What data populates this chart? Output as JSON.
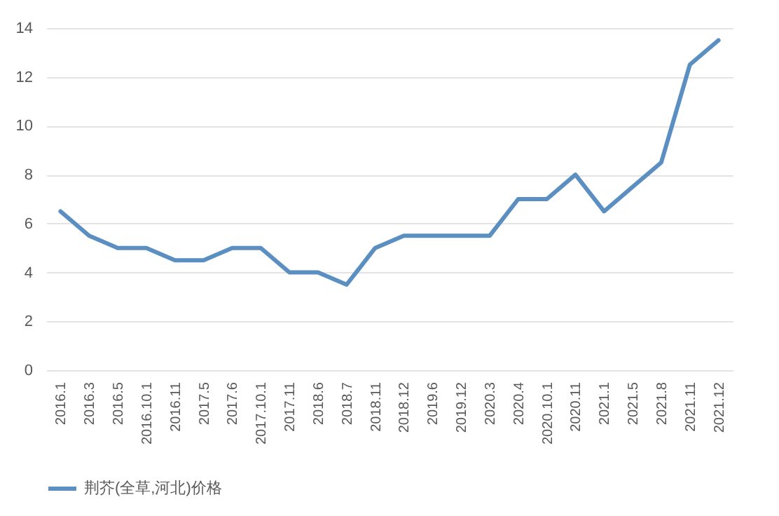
{
  "chart_data": {
    "type": "line",
    "categories": [
      "2016.1",
      "2016.3",
      "2016.5",
      "2016.10.1",
      "2016.11",
      "2017.5",
      "2017.6",
      "2017.10.1",
      "2017.11",
      "2018.6",
      "2018.7",
      "2018.11",
      "2018.12",
      "2019.6",
      "2019.12",
      "2020.3",
      "2020.4",
      "2020.10.1",
      "2020.11",
      "2021.1",
      "2021.5",
      "2021.8",
      "2021.11",
      "2021.12"
    ],
    "series": [
      {
        "name": "荆芥(全草,河北)价格",
        "color": "#5b8fc2",
        "values": [
          6.5,
          5.5,
          5,
          5,
          4.5,
          4.5,
          5,
          5,
          4,
          4,
          3.5,
          5,
          5.5,
          5.5,
          5.5,
          5.5,
          7,
          7,
          8,
          6.5,
          7.5,
          8.5,
          12.5,
          13.5
        ]
      }
    ],
    "ylim": [
      0,
      14
    ],
    "yticks": [
      0,
      2,
      4,
      6,
      8,
      10,
      12,
      14
    ],
    "grid": "y",
    "legend": "bottom",
    "marker": "none",
    "line_style": "solid"
  }
}
